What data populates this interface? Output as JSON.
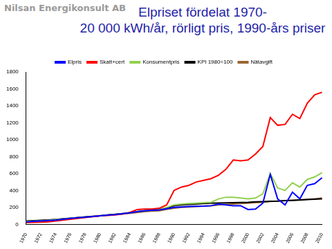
{
  "chart_data": {
    "type": "line",
    "logo": "Nilsan Energikonsult AB",
    "title": [
      "Elpriset fördelat 1970-",
      "20 000 kWh/år, rörligt pris, 1990-års priser"
    ],
    "categories": [
      "1970",
      null,
      "1972",
      null,
      "1974",
      null,
      "1976",
      null,
      "1978",
      null,
      "1980",
      null,
      "1982",
      null,
      "1984",
      null,
      "1986",
      null,
      "1988",
      null,
      "1990",
      null,
      "1992",
      null,
      "1994",
      null,
      "1996",
      null,
      "1998",
      null,
      "2000",
      null,
      "2002",
      null,
      "2004",
      null,
      "2006",
      null,
      "2008",
      null,
      "2010"
    ],
    "series": [
      {
        "name": "Elpris",
        "color": "#0000ff",
        "values": [
          30,
          35,
          40,
          45,
          50,
          60,
          70,
          78,
          85,
          92,
          100,
          108,
          115,
          125,
          135,
          150,
          160,
          165,
          170,
          185,
          200,
          205,
          210,
          212,
          215,
          220,
          240,
          230,
          220,
          220,
          175,
          180,
          250,
          590,
          300,
          230,
          380,
          300,
          460,
          480,
          550
        ]
      },
      {
        "name": "Skatt+cert",
        "color": "#ff0000",
        "values": [
          20,
          22,
          25,
          30,
          40,
          50,
          60,
          70,
          80,
          90,
          100,
          105,
          110,
          120,
          140,
          175,
          180,
          180,
          190,
          230,
          400,
          440,
          460,
          500,
          520,
          540,
          580,
          650,
          760,
          750,
          760,
          830,
          920,
          1260,
          1170,
          1180,
          1300,
          1250,
          1430,
          1530,
          1560
        ]
      },
      {
        "name": "Konsumentpris",
        "color": "#92d050",
        "values": [
          35,
          38,
          42,
          48,
          55,
          62,
          70,
          78,
          85,
          92,
          100,
          108,
          115,
          125,
          135,
          150,
          160,
          165,
          175,
          200,
          230,
          240,
          245,
          250,
          255,
          260,
          300,
          320,
          320,
          310,
          300,
          310,
          360,
          600,
          430,
          400,
          490,
          440,
          530,
          560,
          610
        ]
      },
      {
        "name": "KPI 1980=100",
        "color": "#000000",
        "values": [
          40,
          43,
          47,
          52,
          58,
          65,
          72,
          80,
          88,
          95,
          100,
          110,
          118,
          128,
          138,
          150,
          160,
          168,
          178,
          195,
          220,
          230,
          235,
          240,
          245,
          250,
          252,
          254,
          255,
          257,
          260,
          265,
          268,
          272,
          275,
          280,
          283,
          287,
          292,
          296,
          300
        ]
      },
      {
        "name": "Nätavgift",
        "color": "#996633",
        "values": [
          40,
          42,
          45,
          50,
          55,
          62,
          70,
          78,
          85,
          92,
          100,
          108,
          115,
          122,
          130,
          140,
          150,
          155,
          160,
          175,
          190,
          200,
          205,
          210,
          215,
          220,
          230,
          235,
          240,
          245,
          250,
          255,
          260,
          270,
          275,
          280,
          285,
          290,
          295,
          300,
          310
        ]
      }
    ],
    "ylim": [
      0,
      1800
    ],
    "yticks": [
      0,
      200,
      400,
      600,
      800,
      1000,
      1200,
      1400,
      1600,
      1800
    ],
    "grid": false,
    "legend": "top"
  }
}
